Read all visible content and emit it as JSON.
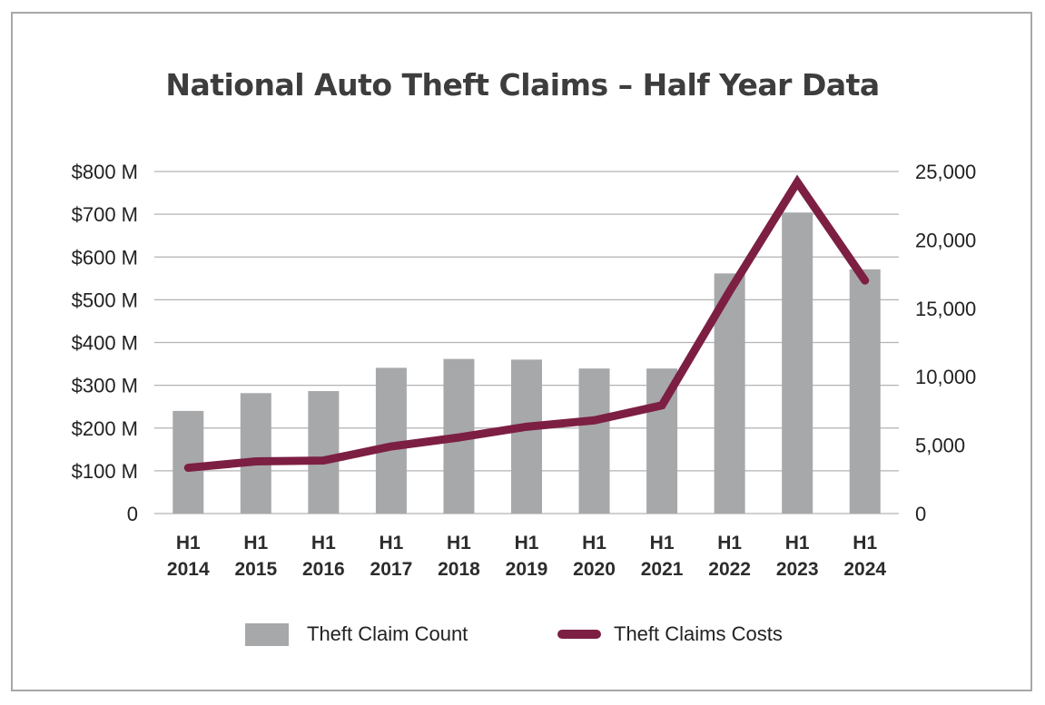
{
  "chart_data": {
    "type": "bar+line",
    "title": "National Auto Theft Claims – Half Year Data",
    "categories": [
      [
        "H1",
        "2014"
      ],
      [
        "H1",
        "2015"
      ],
      [
        "H1",
        "2016"
      ],
      [
        "H1",
        "2017"
      ],
      [
        "H1",
        "2018"
      ],
      [
        "H1",
        "2019"
      ],
      [
        "H1",
        "2020"
      ],
      [
        "H1",
        "2021"
      ],
      [
        "H1",
        "2022"
      ],
      [
        "H1",
        "2023"
      ],
      [
        "H1",
        "2024"
      ]
    ],
    "series": [
      {
        "name": "Theft Claim Count",
        "kind": "bar",
        "axis": "right",
        "color": "#a7a8aa",
        "values": [
          7500,
          8800,
          8950,
          10650,
          11300,
          11250,
          10600,
          10600,
          17550,
          22000,
          17850
        ]
      },
      {
        "name": "Theft Claims Costs",
        "kind": "line",
        "axis": "left",
        "unit": "M",
        "color": "#7c1f43",
        "values": [
          107,
          122,
          124,
          157,
          178,
          203,
          218,
          253,
          520,
          775,
          545
        ]
      }
    ],
    "left_axis": {
      "min": 0,
      "max": 800,
      "ticks": [
        "0",
        "$100 M",
        "$200 M",
        "$300 M",
        "$400 M",
        "$500 M",
        "$600 M",
        "$700 M",
        "$800 M"
      ]
    },
    "right_axis": {
      "min": 0,
      "max": 25000,
      "ticks": [
        "0",
        "5,000",
        "10,000",
        "15,000",
        "20,000",
        "25,000"
      ]
    },
    "grid": true,
    "legend_position": "bottom"
  }
}
